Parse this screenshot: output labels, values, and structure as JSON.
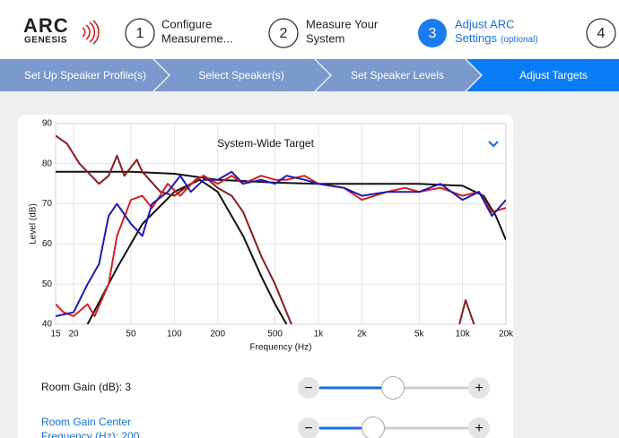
{
  "header": {
    "logo": {
      "name": "ARC",
      "sub": "GENESIS"
    },
    "steps": [
      {
        "number": "1",
        "lines": [
          "Configure",
          "Measureme..."
        ]
      },
      {
        "number": "2",
        "lines": [
          "Measure Your",
          "System"
        ]
      },
      {
        "number": "3",
        "lines": [
          "Adjust ARC",
          "Settings"
        ],
        "note": "(optional)"
      },
      {
        "number": "4"
      }
    ]
  },
  "breadcrumb": [
    "Set Up Speaker Profile(s)",
    "Select Speaker(s)",
    "Set Speaker Levels",
    "Adjust Targets"
  ],
  "chart_data": {
    "type": "line",
    "title": "System-Wide Target",
    "x_label": "Frequency (Hz)",
    "y_label": "Level (dB)",
    "log_x": true,
    "grid": true,
    "xlim": [
      15,
      20000
    ],
    "ylim": [
      40,
      90
    ],
    "xticks": [
      15,
      20,
      50,
      100,
      200,
      500,
      {
        "value": 1000,
        "label": "1k"
      },
      {
        "value": 2000,
        "label": "2k"
      },
      {
        "value": 5000,
        "label": "5k"
      },
      {
        "value": 10000,
        "label": "10k"
      },
      {
        "value": 20000,
        "label": "20k"
      }
    ],
    "yticks": [
      40,
      50,
      60,
      70,
      80,
      90
    ],
    "series": [
      {
        "color": "#111111",
        "x": [
          15,
          50,
          100,
          200,
          500,
          1000,
          5000,
          10000,
          14000,
          17000,
          20000
        ],
        "values": [
          78,
          78,
          77.5,
          76,
          75.3,
          75,
          75,
          74.5,
          72,
          67,
          61
        ]
      },
      {
        "color": "#111111",
        "x": [
          25,
          40,
          60,
          100,
          150,
          200,
          300,
          400,
          500,
          600
        ],
        "values": [
          40,
          54,
          65,
          73,
          76,
          73,
          62,
          52,
          45,
          40
        ]
      },
      {
        "color": "#8b1c1c",
        "x": [
          15,
          18,
          22,
          30,
          35,
          40,
          45,
          55,
          60,
          80,
          100,
          130,
          160,
          200,
          250,
          300,
          400,
          500,
          600,
          650,
          null,
          9500,
          10500,
          12000
        ],
        "values": [
          87,
          85,
          80,
          75,
          77,
          82,
          77,
          81,
          78,
          73,
          72,
          75,
          77,
          74,
          72,
          68,
          57,
          50,
          43,
          40,
          null,
          40,
          46,
          40
        ]
      },
      {
        "color": "#d42020",
        "x": [
          15,
          17,
          20,
          25,
          28,
          35,
          40,
          50,
          60,
          70,
          90,
          110,
          140,
          160,
          200,
          250,
          300,
          400,
          500,
          600,
          800,
          1000,
          1500,
          2000,
          3000,
          4000,
          5000,
          7000,
          10000,
          13000,
          16000,
          20000
        ],
        "values": [
          45,
          43,
          42,
          45,
          42,
          50,
          62,
          71,
          72,
          69,
          75,
          72,
          76,
          77,
          75,
          77,
          75,
          77,
          76,
          76,
          77,
          75,
          74,
          71,
          73,
          74,
          73,
          74,
          72,
          73,
          68,
          69
        ]
      },
      {
        "color": "#1c1cb4",
        "x": [
          15,
          20,
          25,
          30,
          35,
          40,
          50,
          60,
          70,
          90,
          110,
          130,
          160,
          200,
          250,
          300,
          400,
          500,
          600,
          800,
          1000,
          1500,
          2000,
          3000,
          4000,
          5000,
          7000,
          10000,
          13000,
          16000,
          20000
        ],
        "values": [
          42,
          43,
          50,
          55,
          67,
          70,
          65,
          62,
          70,
          73,
          77,
          73,
          76,
          76,
          78,
          75,
          76,
          75,
          77,
          76,
          75,
          74,
          72,
          73,
          73,
          73,
          75,
          71,
          73,
          67,
          71
        ]
      }
    ]
  },
  "controls": [
    {
      "label": "Room Gain (dB): 3",
      "minus": "−",
      "plus": "+"
    },
    {
      "label_lines": [
        "Room Gain Center",
        "Frequency (Hz): 200"
      ],
      "minus": "−",
      "plus": "+"
    }
  ]
}
